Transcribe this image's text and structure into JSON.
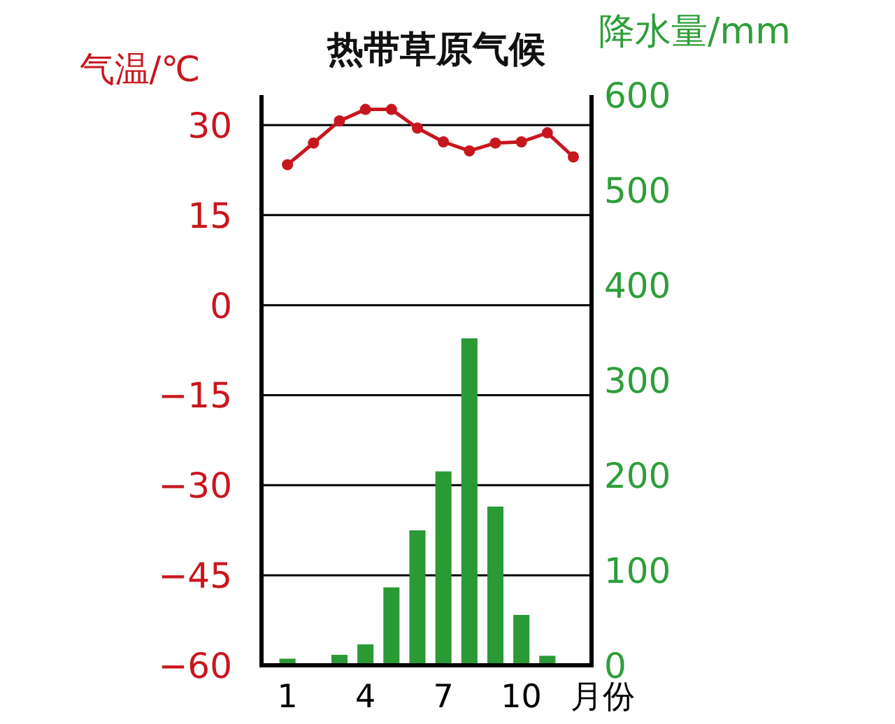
{
  "chart_data": {
    "type": "bar",
    "title": "热带草原气候",
    "xlabel": "月份",
    "ylabel": "气温/℃",
    "y2label": "降水量/mm",
    "x": [
      1,
      2,
      3,
      4,
      5,
      6,
      7,
      8,
      9,
      10,
      11,
      12
    ],
    "xlim": [
      0,
      12.7
    ],
    "xticks": [
      1,
      4,
      7,
      10
    ],
    "ylim": [
      -60,
      35
    ],
    "yticks": [
      -60,
      -45,
      -30,
      -15,
      0,
      15,
      30
    ],
    "y2lim": [
      0,
      600
    ],
    "y2ticks": [
      0,
      100,
      200,
      300,
      400,
      500,
      600
    ],
    "grid": "y",
    "marker": "circle",
    "series": [
      {
        "axis": "y2",
        "color": "#2a9a35",
        "values": [
          7,
          0,
          11,
          22,
          82,
          142,
          204,
          344,
          167,
          53,
          10,
          0
        ]
      },
      {
        "type": "line",
        "color": "#c8161e",
        "values": [
          23.4,
          27,
          30.7,
          32.6,
          32.6,
          29.5,
          27.2,
          25.7,
          27,
          27.2,
          28.7,
          24.7
        ]
      }
    ]
  }
}
